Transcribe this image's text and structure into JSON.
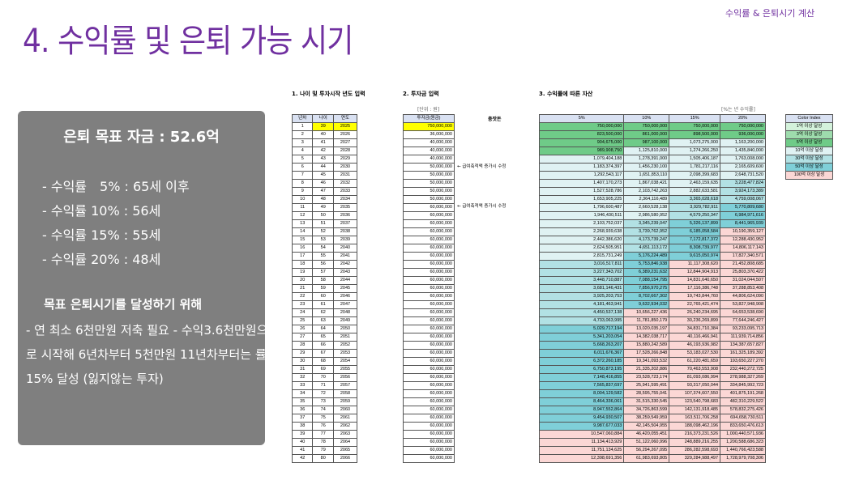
{
  "header": {
    "title": "4. 수익률 및 은퇴 가능 시기",
    "corner": "수익률 & 은퇴시기 계산"
  },
  "panel": {
    "heading": "은퇴 목표 자금 : 52.6억",
    "lines": [
      "- 수익률　5% : 65세 이후",
      "- 수익률 10% : 56세",
      "- 수익률 15% : 55세",
      "- 수익률 20% : 48세"
    ],
    "bold": "목표 은퇴시기를 달성하기 위해",
    "paragraph": "- 연 최소 6천만원 저축 필요  - 수익3.6천만원으로 시작해 6년차부터 5천만원 11년차부터는 률 15% 달성 (잃지않는 투자)"
  },
  "sections": {
    "s1": "1. 나이 및 투자시작 년도 입력",
    "s2": "2. 투자금 입력",
    "s3": "3. 수익률에 따른 자산",
    "unit": "[단위 : 원]",
    "rate_note": "[%는 년 수익률]",
    "seed": "총잣돈",
    "raise_note": "← 급여축적액 증가시 수정"
  },
  "table1": {
    "headers": [
      "년차",
      "나이",
      "연도"
    ],
    "start_age": 39,
    "start_year": 2025,
    "rows": 42
  },
  "table2": {
    "header": "투자금(원금)",
    "contributions": [
      750000000,
      36000000,
      40000000,
      40000000,
      40000000,
      50000000,
      50000000,
      50000000,
      50000000,
      50000000,
      60000000,
      60000000,
      60000000,
      60000000,
      60000000,
      60000000,
      60000000,
      60000000,
      60000000,
      60000000,
      60000000,
      60000000,
      60000000,
      60000000,
      60000000,
      60000000,
      60000000,
      60000000,
      60000000,
      60000000,
      60000000,
      60000000,
      60000000,
      60000000,
      60000000,
      60000000,
      60000000,
      60000000,
      60000000,
      60000000,
      60000000,
      60000000
    ],
    "note_rows": [
      6,
      11
    ]
  },
  "table3": {
    "headers": [
      "5%",
      "10%",
      "15%",
      "20%"
    ],
    "rates": [
      0.05,
      0.1,
      0.15,
      0.2
    ]
  },
  "legend": {
    "title": "Color Index",
    "items": [
      {
        "label": "1억 이상 달성",
        "min": 100000000,
        "color": "#d4f2db"
      },
      {
        "label": "3억 이상 달성",
        "min": 300000000,
        "color": "#9edcad"
      },
      {
        "label": "5억 이상 달성",
        "min": 500000000,
        "color": "#6fcb88"
      },
      {
        "label": "10억 이상 달성",
        "min": 1000000000,
        "color": "#e0f2f3"
      },
      {
        "label": "30억 이상 달성",
        "min": 3000000000,
        "color": "#b2e1e4"
      },
      {
        "label": "50억 이상 달성",
        "min": 5000000000,
        "color": "#7fcfd8"
      },
      {
        "label": "100억 이상 달성",
        "min": 10000000000,
        "color": "#fbd7d5"
      }
    ]
  },
  "colors": {
    "accent": "#7030a0",
    "panel": "#7f7f7f",
    "input": "#ffff00"
  }
}
